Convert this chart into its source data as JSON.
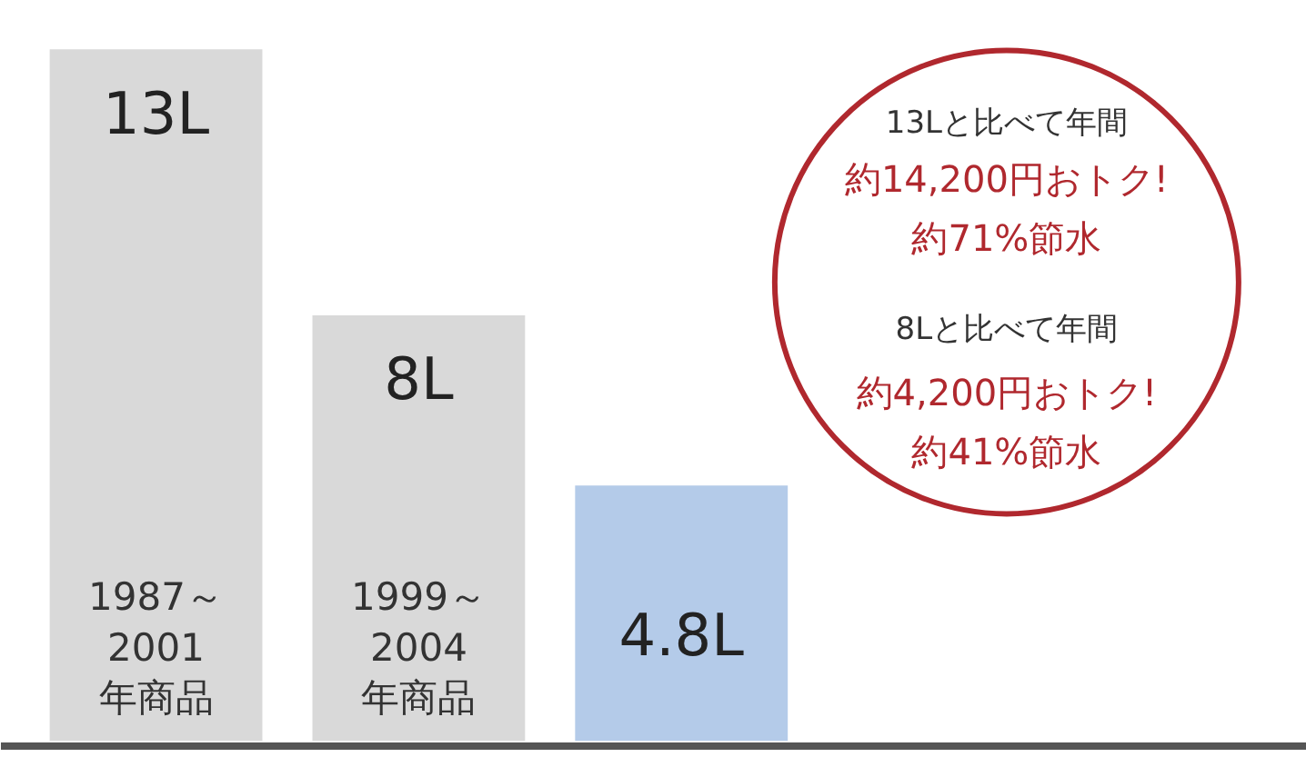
{
  "chart_data": {
    "type": "bar",
    "categories": [
      "1987～\n2001\n年商品",
      "1999～\n2004\n年商品",
      null
    ],
    "values": [
      13,
      8,
      4.8
    ],
    "colors": [
      "#d9d9d9",
      "#d9d9d9",
      "#b4cbe9"
    ],
    "value_labels": [
      "13L",
      "8L",
      "4.8L"
    ],
    "grid": false,
    "annotations": [
      "13Lと比べて年間",
      "約14,200円おトク!",
      "約71%節水",
      "8Lと比べて年間",
      "約4,200円おトク!",
      "約41%節水"
    ]
  }
}
